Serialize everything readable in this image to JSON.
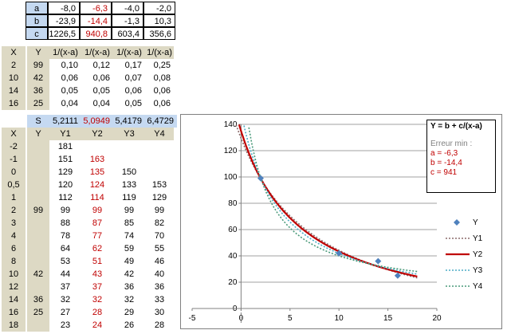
{
  "params": {
    "rows": [
      {
        "label": "a",
        "values": [
          "-8,0",
          "-6,3",
          "-4,0",
          "-2,0"
        ]
      },
      {
        "label": "b",
        "values": [
          "-23,9",
          "-14,4",
          "-1,3",
          "10,3"
        ]
      },
      {
        "label": "c",
        "values": [
          "1226,5",
          "940,8",
          "603,4",
          "356,6"
        ]
      }
    ]
  },
  "obs_table": {
    "headers": [
      "X",
      "Y",
      "1/(x-a)",
      "1/(x-a)",
      "1/(x-a)",
      "1/(x-a)"
    ],
    "rows": [
      [
        "2",
        "99",
        "0,10",
        "0,12",
        "0,17",
        "0,25"
      ],
      [
        "10",
        "42",
        "0,06",
        "0,06",
        "0,07",
        "0,08"
      ],
      [
        "14",
        "36",
        "0,05",
        "0,05",
        "0,06",
        "0,06"
      ],
      [
        "16",
        "25",
        "0,04",
        "0,04",
        "0,05",
        "0,06"
      ]
    ]
  },
  "s_row": {
    "label": "S",
    "values": [
      "5,2111",
      "5,0949",
      "5,4179",
      "6,4729"
    ]
  },
  "fit_table": {
    "headers": [
      "X",
      "Y",
      "Y1",
      "Y2",
      "Y3",
      "Y4"
    ],
    "rows": [
      [
        "-2",
        "",
        "181",
        "",
        "",
        ""
      ],
      [
        "-1",
        "",
        "151",
        "163",
        "",
        ""
      ],
      [
        "0",
        "",
        "129",
        "135",
        "150",
        ""
      ],
      [
        "0,5",
        "",
        "120",
        "124",
        "133",
        "153"
      ],
      [
        "1",
        "",
        "112",
        "114",
        "119",
        "129"
      ],
      [
        "2",
        "99",
        "99",
        "99",
        "99",
        "99"
      ],
      [
        "3",
        "",
        "88",
        "87",
        "85",
        "82"
      ],
      [
        "4",
        "",
        "78",
        "77",
        "74",
        "70"
      ],
      [
        "6",
        "",
        "64",
        "62",
        "59",
        "55"
      ],
      [
        "8",
        "",
        "53",
        "51",
        "49",
        "46"
      ],
      [
        "10",
        "42",
        "44",
        "43",
        "42",
        "40"
      ],
      [
        "12",
        "",
        "37",
        "37",
        "36",
        "36"
      ],
      [
        "14",
        "36",
        "32",
        "32",
        "32",
        "33"
      ],
      [
        "16",
        "25",
        "27",
        "28",
        "29",
        "30"
      ],
      [
        "18",
        "",
        "23",
        "24",
        "26",
        "28"
      ]
    ]
  },
  "info": {
    "title": "Y = b + c/(x-a)",
    "subtitle": "Erreur min :",
    "a": "a = -6,3",
    "b": "b = -14,4",
    "c": "c =  941"
  },
  "colors": {
    "accent_red": "#c00000",
    "y_marker": "#4f81bd",
    "y1": "#8b6b6b",
    "y3": "#4bacc6",
    "y4": "#4a9a7a"
  },
  "chart_data": {
    "type": "scatter",
    "xlim": [
      -5,
      20
    ],
    "ylim": [
      0,
      140
    ],
    "xticks": [
      -5,
      0,
      5,
      10,
      15,
      20
    ],
    "yticks": [
      0,
      20,
      40,
      60,
      80,
      100,
      120,
      140
    ],
    "grid": "horizontal",
    "legend_position": "right",
    "points": {
      "name": "Y",
      "x": [
        2,
        10,
        14,
        16
      ],
      "y": [
        99,
        42,
        36,
        25
      ]
    },
    "series": [
      {
        "name": "Y1",
        "a": -8.0,
        "b": -23.9,
        "c": 1226.5,
        "style": "dotted",
        "color": "#8b6b6b"
      },
      {
        "name": "Y2",
        "a": -6.3,
        "b": -14.4,
        "c": 940.8,
        "style": "solid",
        "color": "#c00000"
      },
      {
        "name": "Y3",
        "a": -4.0,
        "b": -1.3,
        "c": 603.4,
        "style": "dotted",
        "color": "#4bacc6"
      },
      {
        "name": "Y4",
        "a": -2.0,
        "b": 10.3,
        "c": 356.6,
        "style": "dotted",
        "color": "#4a9a7a"
      }
    ]
  }
}
